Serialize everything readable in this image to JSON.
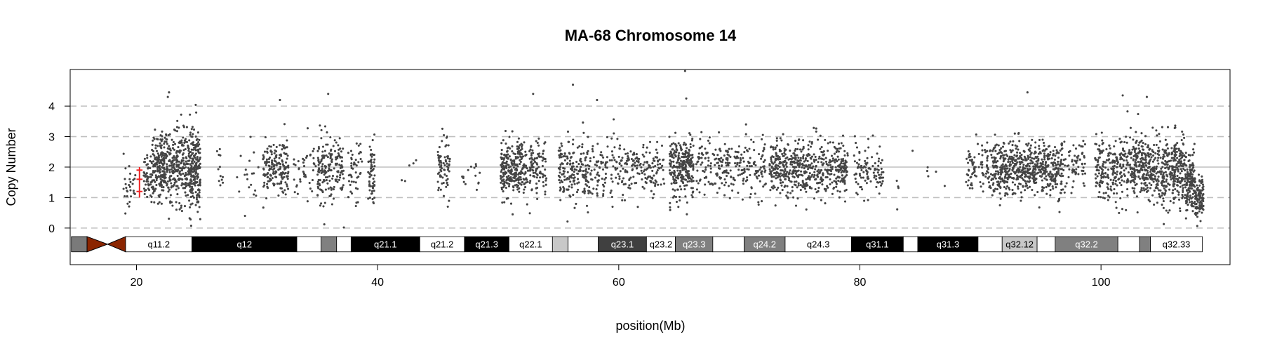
{
  "chart_data": {
    "type": "scatter",
    "title": "MA-68  Chromosome 14",
    "xlabel": "position(Mb)",
    "ylabel": "Copy Number",
    "xlim": [
      14.5,
      110.7
    ],
    "ylim": [
      -1.2,
      5.2
    ],
    "x_ticks": [
      20,
      40,
      60,
      80,
      100
    ],
    "y_ticks": [
      0,
      1,
      2,
      3,
      4
    ],
    "reference_lines_dashed": [
      0,
      1,
      3,
      4
    ],
    "reference_line_solid": 2,
    "point_color": "#444444",
    "segment_color": "#ee2222",
    "centromere_color": "#8b2500",
    "segments": [
      {
        "start": 20.0,
        "end": 20.5,
        "value": 1.2
      },
      {
        "start": 20.0,
        "end": 20.5,
        "value": 1.6
      },
      {
        "start": 20.0,
        "end": 20.5,
        "value": 1.9
      }
    ],
    "clusters": [
      {
        "start": 18.9,
        "end": 19.9,
        "n": 30,
        "mean": 1.2,
        "sd": 0.35
      },
      {
        "start": 20.6,
        "end": 21.3,
        "n": 50,
        "mean": 1.8,
        "sd": 0.45
      },
      {
        "start": 21.3,
        "end": 24.4,
        "n": 430,
        "mean": 2.0,
        "sd": 0.6
      },
      {
        "start": 24.4,
        "end": 25.3,
        "n": 200,
        "mean": 1.95,
        "sd": 0.65
      },
      {
        "start": 26.5,
        "end": 27.2,
        "n": 12,
        "mean": 2.0,
        "sd": 0.4
      },
      {
        "start": 28.0,
        "end": 30.3,
        "n": 18,
        "mean": 1.8,
        "sd": 0.45
      },
      {
        "start": 30.5,
        "end": 32.6,
        "n": 170,
        "mean": 2.0,
        "sd": 0.45
      },
      {
        "start": 33.0,
        "end": 34.9,
        "n": 40,
        "mean": 1.9,
        "sd": 0.45
      },
      {
        "start": 35.0,
        "end": 37.2,
        "n": 180,
        "mean": 1.9,
        "sd": 0.55
      },
      {
        "start": 37.5,
        "end": 38.7,
        "n": 45,
        "mean": 1.8,
        "sd": 0.45
      },
      {
        "start": 39.2,
        "end": 39.8,
        "n": 60,
        "mean": 1.8,
        "sd": 0.5
      },
      {
        "start": 42.0,
        "end": 43.2,
        "n": 5,
        "mean": 2.0,
        "sd": 0.3
      },
      {
        "start": 45.0,
        "end": 46.0,
        "n": 75,
        "mean": 2.0,
        "sd": 0.45
      },
      {
        "start": 47.0,
        "end": 48.5,
        "n": 15,
        "mean": 1.9,
        "sd": 0.4
      },
      {
        "start": 50.2,
        "end": 52.0,
        "n": 230,
        "mean": 1.95,
        "sd": 0.5
      },
      {
        "start": 52.0,
        "end": 54.0,
        "n": 130,
        "mean": 1.9,
        "sd": 0.45
      },
      {
        "start": 55.0,
        "end": 57.5,
        "n": 180,
        "mean": 1.85,
        "sd": 0.5
      },
      {
        "start": 57.5,
        "end": 63.8,
        "n": 260,
        "mean": 1.95,
        "sd": 0.45
      },
      {
        "start": 64.2,
        "end": 66.2,
        "n": 260,
        "mean": 2.0,
        "sd": 0.5
      },
      {
        "start": 66.4,
        "end": 72.2,
        "n": 250,
        "mean": 2.0,
        "sd": 0.45
      },
      {
        "start": 72.5,
        "end": 79.0,
        "n": 560,
        "mean": 1.95,
        "sd": 0.45
      },
      {
        "start": 79.5,
        "end": 82.0,
        "n": 100,
        "mean": 1.9,
        "sd": 0.4
      },
      {
        "start": 82.5,
        "end": 83.3,
        "n": 4,
        "mean": 1.4,
        "sd": 0.3
      },
      {
        "start": 84.2,
        "end": 87.2,
        "n": 6,
        "mean": 1.9,
        "sd": 0.3
      },
      {
        "start": 88.8,
        "end": 91.0,
        "n": 90,
        "mean": 2.0,
        "sd": 0.45
      },
      {
        "start": 91.0,
        "end": 96.8,
        "n": 600,
        "mean": 2.0,
        "sd": 0.45
      },
      {
        "start": 96.8,
        "end": 98.7,
        "n": 70,
        "mean": 2.0,
        "sd": 0.45
      },
      {
        "start": 99.5,
        "end": 102.2,
        "n": 220,
        "mean": 2.0,
        "sd": 0.55
      },
      {
        "start": 102.2,
        "end": 104.5,
        "n": 260,
        "mean": 2.0,
        "sd": 0.5
      },
      {
        "start": 104.5,
        "end": 107.0,
        "n": 300,
        "mean": 1.9,
        "sd": 0.55
      },
      {
        "start": 107.0,
        "end": 107.8,
        "n": 140,
        "mean": 1.5,
        "sd": 0.5
      },
      {
        "start": 107.8,
        "end": 108.5,
        "n": 100,
        "mean": 1.0,
        "sd": 0.3
      }
    ],
    "outliers": [
      {
        "x": 22.7,
        "y": 4.45
      },
      {
        "x": 22.6,
        "y": 4.3
      },
      {
        "x": 35.9,
        "y": 4.4
      },
      {
        "x": 31.9,
        "y": 4.2
      },
      {
        "x": 52.9,
        "y": 4.4
      },
      {
        "x": 56.2,
        "y": 4.7
      },
      {
        "x": 58.2,
        "y": 4.2
      },
      {
        "x": 65.5,
        "y": 5.15
      },
      {
        "x": 65.6,
        "y": 4.25
      },
      {
        "x": 93.9,
        "y": 4.45
      },
      {
        "x": 101.8,
        "y": 4.35
      },
      {
        "x": 103.8,
        "y": 4.3
      },
      {
        "x": 29.0,
        "y": 0.4
      },
      {
        "x": 37.2,
        "y": 0.02
      },
      {
        "x": 51.2,
        "y": 0.45
      }
    ],
    "bands": [
      {
        "start": 14.6,
        "end": 15.9,
        "fill": "#7a7a7a",
        "label": "",
        "text_color": "#000000"
      },
      {
        "start": 15.9,
        "end": 17.6,
        "fill": "#8b2500",
        "label": "",
        "text_color": "#000000",
        "shape": "centromere-left"
      },
      {
        "start": 17.6,
        "end": 19.1,
        "fill": "#8b2500",
        "label": "",
        "text_color": "#000000",
        "shape": "centromere-right"
      },
      {
        "start": 19.1,
        "end": 24.6,
        "fill": "#ffffff",
        "label": "q11.2",
        "text_color": "#000000"
      },
      {
        "start": 24.6,
        "end": 33.3,
        "fill": "#000000",
        "label": "q12",
        "text_color": "#ffffff"
      },
      {
        "start": 33.3,
        "end": 35.3,
        "fill": "#ffffff",
        "label": "",
        "text_color": "#000000"
      },
      {
        "start": 35.3,
        "end": 36.6,
        "fill": "#808080",
        "label": "",
        "text_color": "#ffffff"
      },
      {
        "start": 36.6,
        "end": 37.8,
        "fill": "#ffffff",
        "label": "",
        "text_color": "#000000"
      },
      {
        "start": 37.8,
        "end": 43.5,
        "fill": "#000000",
        "label": "q21.1",
        "text_color": "#ffffff"
      },
      {
        "start": 43.5,
        "end": 47.2,
        "fill": "#ffffff",
        "label": "q21.2",
        "text_color": "#000000"
      },
      {
        "start": 47.2,
        "end": 50.9,
        "fill": "#000000",
        "label": "q21.3",
        "text_color": "#ffffff"
      },
      {
        "start": 50.9,
        "end": 54.5,
        "fill": "#ffffff",
        "label": "q22.1",
        "text_color": "#000000"
      },
      {
        "start": 54.5,
        "end": 55.8,
        "fill": "#c8c8c8",
        "label": "",
        "text_color": "#000000"
      },
      {
        "start": 55.8,
        "end": 58.3,
        "fill": "#ffffff",
        "label": "",
        "text_color": "#000000"
      },
      {
        "start": 58.3,
        "end": 62.3,
        "fill": "#404040",
        "label": "q23.1",
        "text_color": "#ffffff"
      },
      {
        "start": 62.3,
        "end": 64.7,
        "fill": "#ffffff",
        "label": "q23.2",
        "text_color": "#000000"
      },
      {
        "start": 64.7,
        "end": 67.8,
        "fill": "#808080",
        "label": "q23.3",
        "text_color": "#ffffff"
      },
      {
        "start": 67.8,
        "end": 70.4,
        "fill": "#ffffff",
        "label": "",
        "text_color": "#000000"
      },
      {
        "start": 70.4,
        "end": 73.8,
        "fill": "#808080",
        "label": "q24.2",
        "text_color": "#ffffff"
      },
      {
        "start": 73.8,
        "end": 79.3,
        "fill": "#ffffff",
        "label": "q24.3",
        "text_color": "#000000"
      },
      {
        "start": 79.3,
        "end": 83.6,
        "fill": "#000000",
        "label": "q31.1",
        "text_color": "#ffffff"
      },
      {
        "start": 83.6,
        "end": 84.8,
        "fill": "#ffffff",
        "label": "",
        "text_color": "#000000"
      },
      {
        "start": 84.8,
        "end": 89.8,
        "fill": "#000000",
        "label": "q31.3",
        "text_color": "#ffffff"
      },
      {
        "start": 89.8,
        "end": 91.8,
        "fill": "#ffffff",
        "label": "",
        "text_color": "#000000"
      },
      {
        "start": 91.8,
        "end": 94.7,
        "fill": "#c8c8c8",
        "label": "q32.12",
        "text_color": "#000000"
      },
      {
        "start": 94.7,
        "end": 96.2,
        "fill": "#ffffff",
        "label": "",
        "text_color": "#000000"
      },
      {
        "start": 96.2,
        "end": 101.4,
        "fill": "#808080",
        "label": "q32.2",
        "text_color": "#ffffff"
      },
      {
        "start": 101.4,
        "end": 103.2,
        "fill": "#ffffff",
        "label": "",
        "text_color": "#000000"
      },
      {
        "start": 103.2,
        "end": 104.1,
        "fill": "#808080",
        "label": "",
        "text_color": "#ffffff"
      },
      {
        "start": 104.1,
        "end": 108.4,
        "fill": "#ffffff",
        "label": "q32.33",
        "text_color": "#000000"
      }
    ]
  }
}
